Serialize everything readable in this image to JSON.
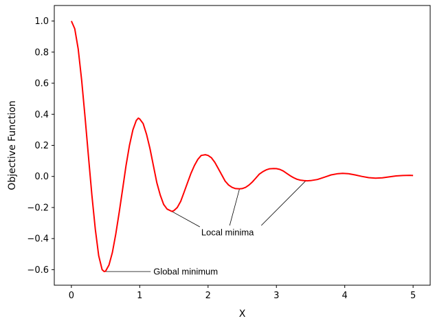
{
  "chart_data": {
    "type": "line",
    "title": "",
    "xlabel": "X",
    "ylabel": "Objective Function",
    "xlim": [
      -0.25,
      5.25
    ],
    "ylim": [
      -0.7,
      1.1
    ],
    "x_ticks": [
      0,
      1,
      2,
      3,
      4,
      5
    ],
    "x_tick_labels": [
      "0",
      "1",
      "2",
      "3",
      "4",
      "5"
    ],
    "y_ticks": [
      -0.6,
      -0.4,
      -0.2,
      0.0,
      0.2,
      0.4,
      0.6,
      0.8,
      1.0
    ],
    "y_tick_labels": [
      "−0.6",
      "−0.4",
      "−0.2",
      "0.0",
      "0.2",
      "0.4",
      "0.6",
      "0.8",
      "1.0"
    ],
    "grid": false,
    "series": [
      {
        "color": "#ff0000",
        "points": [
          [
            0.0,
            1.0
          ],
          [
            0.05,
            0.95
          ],
          [
            0.1,
            0.82
          ],
          [
            0.15,
            0.62
          ],
          [
            0.2,
            0.38
          ],
          [
            0.25,
            0.13
          ],
          [
            0.3,
            -0.12
          ],
          [
            0.35,
            -0.34
          ],
          [
            0.4,
            -0.51
          ],
          [
            0.45,
            -0.6
          ],
          [
            0.48,
            -0.612
          ],
          [
            0.5,
            -0.61
          ],
          [
            0.55,
            -0.57
          ],
          [
            0.6,
            -0.49
          ],
          [
            0.65,
            -0.37
          ],
          [
            0.7,
            -0.23
          ],
          [
            0.75,
            -0.08
          ],
          [
            0.8,
            0.07
          ],
          [
            0.85,
            0.2
          ],
          [
            0.9,
            0.3
          ],
          [
            0.95,
            0.36
          ],
          [
            0.98,
            0.375
          ],
          [
            1.0,
            0.37
          ],
          [
            1.05,
            0.34
          ],
          [
            1.1,
            0.27
          ],
          [
            1.15,
            0.18
          ],
          [
            1.2,
            0.07
          ],
          [
            1.25,
            -0.04
          ],
          [
            1.3,
            -0.12
          ],
          [
            1.35,
            -0.18
          ],
          [
            1.4,
            -0.21
          ],
          [
            1.47,
            -0.225
          ],
          [
            1.5,
            -0.22
          ],
          [
            1.55,
            -0.2
          ],
          [
            1.6,
            -0.16
          ],
          [
            1.65,
            -0.1
          ],
          [
            1.7,
            -0.04
          ],
          [
            1.75,
            0.02
          ],
          [
            1.8,
            0.07
          ],
          [
            1.85,
            0.11
          ],
          [
            1.9,
            0.135
          ],
          [
            1.96,
            0.14
          ],
          [
            2.0,
            0.135
          ],
          [
            2.05,
            0.12
          ],
          [
            2.1,
            0.09
          ],
          [
            2.15,
            0.05
          ],
          [
            2.2,
            0.01
          ],
          [
            2.25,
            -0.03
          ],
          [
            2.3,
            -0.055
          ],
          [
            2.35,
            -0.07
          ],
          [
            2.4,
            -0.078
          ],
          [
            2.46,
            -0.08
          ],
          [
            2.5,
            -0.078
          ],
          [
            2.55,
            -0.07
          ],
          [
            2.6,
            -0.055
          ],
          [
            2.65,
            -0.035
          ],
          [
            2.7,
            -0.01
          ],
          [
            2.75,
            0.015
          ],
          [
            2.8,
            0.03
          ],
          [
            2.85,
            0.042
          ],
          [
            2.9,
            0.049
          ],
          [
            2.96,
            0.051
          ],
          [
            3.0,
            0.05
          ],
          [
            3.05,
            0.045
          ],
          [
            3.1,
            0.035
          ],
          [
            3.15,
            0.02
          ],
          [
            3.2,
            0.005
          ],
          [
            3.25,
            -0.008
          ],
          [
            3.3,
            -0.018
          ],
          [
            3.35,
            -0.024
          ],
          [
            3.4,
            -0.027
          ],
          [
            3.45,
            -0.028
          ],
          [
            3.5,
            -0.027
          ],
          [
            3.6,
            -0.02
          ],
          [
            3.7,
            -0.005
          ],
          [
            3.8,
            0.01
          ],
          [
            3.9,
            0.018
          ],
          [
            3.97,
            0.02
          ],
          [
            4.05,
            0.018
          ],
          [
            4.15,
            0.01
          ],
          [
            4.25,
            0.0
          ],
          [
            4.35,
            -0.008
          ],
          [
            4.45,
            -0.011
          ],
          [
            4.55,
            -0.009
          ],
          [
            4.65,
            -0.003
          ],
          [
            4.75,
            0.003
          ],
          [
            4.85,
            0.006
          ],
          [
            4.95,
            0.007
          ],
          [
            5.0,
            0.006
          ]
        ]
      }
    ],
    "annotations": [
      {
        "text": "Global minimum",
        "point": [
          0.48,
          -0.612
        ],
        "text_pos": [
          1.2,
          -0.612
        ]
      },
      {
        "text": "Local minima",
        "points": [
          [
            1.47,
            -0.225
          ],
          [
            2.46,
            -0.08
          ],
          [
            3.43,
            -0.028
          ]
        ],
        "text_pos": [
          1.9,
          -0.36
        ]
      }
    ]
  }
}
